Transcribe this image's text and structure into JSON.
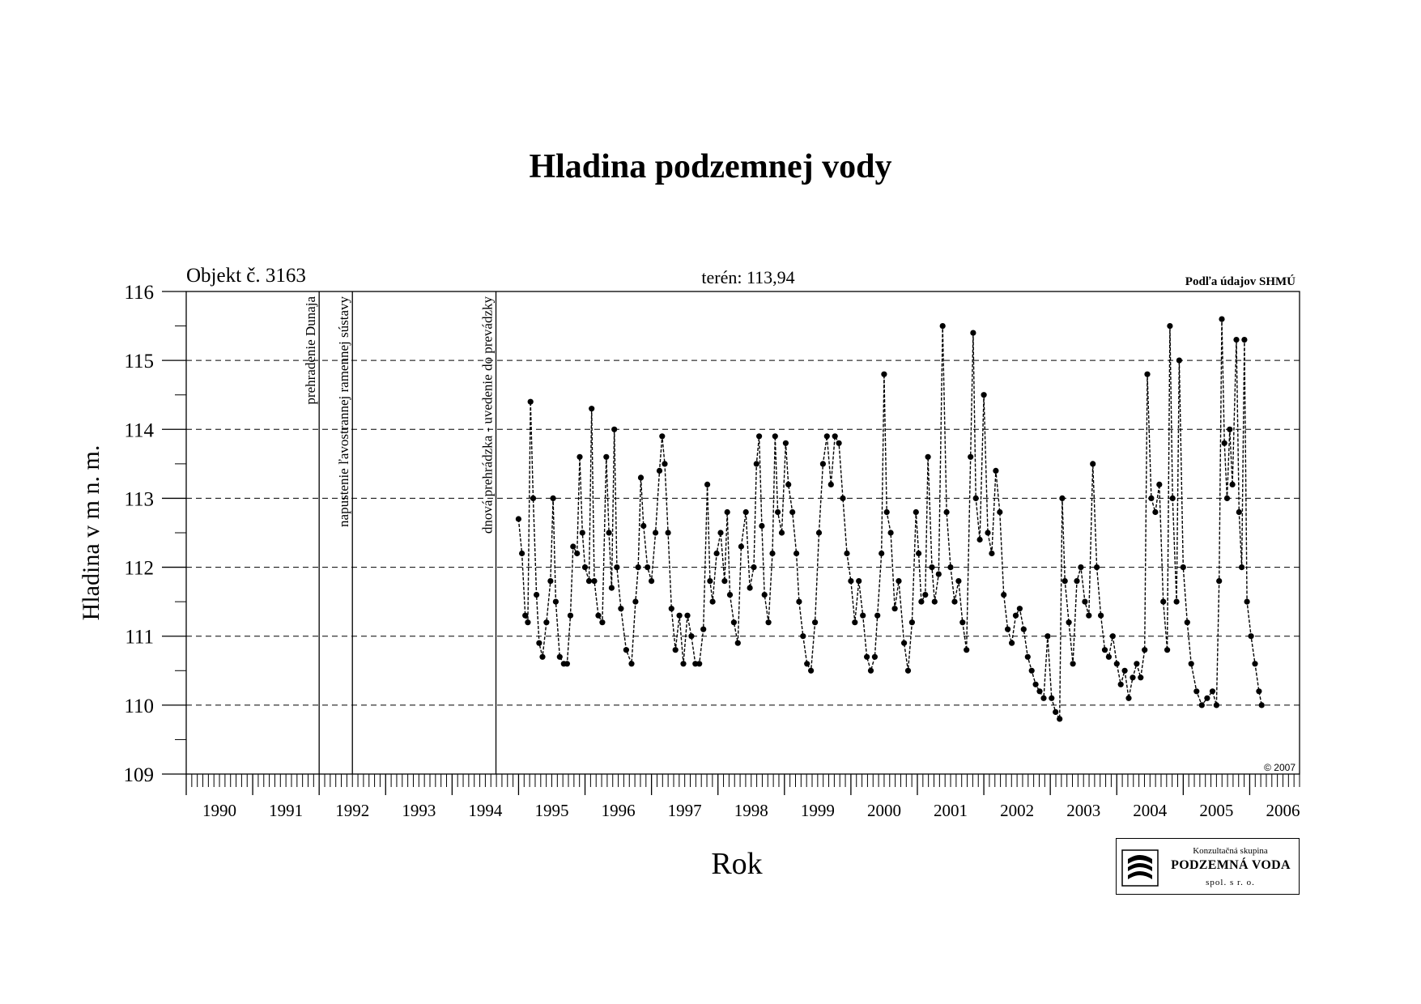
{
  "title": "Hladina podzemnej vody",
  "object_label": "Objekt č. 3163",
  "terrain_label": "terén: 113,94",
  "source_label": "Podľa údajov SHMÚ",
  "copyright": "© 2007",
  "logo": {
    "line1": "Konzultačná skupina",
    "line2": "PODZEMNÁ VODA",
    "line3": "spol. s r. o."
  },
  "chart_data": {
    "type": "line",
    "title": "Hladina podzemnej vody",
    "xlabel": "Rok",
    "ylabel": "Hladina v m n. m.",
    "xlim": [
      1990.0,
      2006.75
    ],
    "ylim": [
      109,
      116
    ],
    "yticks": [
      109,
      110,
      111,
      112,
      113,
      114,
      115,
      116
    ],
    "ytick_labels": [
      "109",
      "110",
      "111",
      "112",
      "113",
      "114",
      "115",
      "116"
    ],
    "xtick_labels": [
      "1990",
      "1991",
      "1992",
      "1993",
      "1994",
      "1995",
      "1996",
      "1997",
      "1998",
      "1999",
      "2000",
      "2001",
      "2002",
      "2003",
      "2004",
      "2005",
      "2006"
    ],
    "grid": "horizontal dashed",
    "events": [
      {
        "x": 1992.0,
        "label": "prehradenie Dunaja"
      },
      {
        "x": 1992.5,
        "label": "napustenie ľavostrannej ramennej sústavy"
      },
      {
        "x": 1994.66,
        "label": "dnová prehrádzka - uvedenie do prevádzky"
      }
    ],
    "series": [
      {
        "values": [
          [
            1995.0,
            112.7
          ],
          [
            1995.05,
            112.2
          ],
          [
            1995.1,
            111.3
          ],
          [
            1995.14,
            111.2
          ],
          [
            1995.18,
            114.4
          ],
          [
            1995.22,
            113.0
          ],
          [
            1995.27,
            111.6
          ],
          [
            1995.31,
            110.9
          ],
          [
            1995.36,
            110.7
          ],
          [
            1995.42,
            111.2
          ],
          [
            1995.48,
            111.8
          ],
          [
            1995.52,
            113.0
          ],
          [
            1995.56,
            111.5
          ],
          [
            1995.62,
            110.7
          ],
          [
            1995.68,
            110.6
          ],
          [
            1995.73,
            110.6
          ],
          [
            1995.78,
            111.3
          ],
          [
            1995.82,
            112.3
          ],
          [
            1995.88,
            112.2
          ],
          [
            1995.92,
            113.6
          ],
          [
            1995.96,
            112.5
          ],
          [
            1996.0,
            112.0
          ],
          [
            1996.06,
            111.8
          ],
          [
            1996.1,
            114.3
          ],
          [
            1996.14,
            111.8
          ],
          [
            1996.2,
            111.3
          ],
          [
            1996.26,
            111.2
          ],
          [
            1996.32,
            113.6
          ],
          [
            1996.36,
            112.5
          ],
          [
            1996.4,
            111.7
          ],
          [
            1996.44,
            114.0
          ],
          [
            1996.48,
            112.0
          ],
          [
            1996.54,
            111.4
          ],
          [
            1996.62,
            110.8
          ],
          [
            1996.7,
            110.6
          ],
          [
            1996.76,
            111.5
          ],
          [
            1996.8,
            112.0
          ],
          [
            1996.84,
            113.3
          ],
          [
            1996.88,
            112.6
          ],
          [
            1996.94,
            112.0
          ],
          [
            1997.0,
            111.8
          ],
          [
            1997.06,
            112.5
          ],
          [
            1997.12,
            113.4
          ],
          [
            1997.16,
            113.9
          ],
          [
            1997.2,
            113.5
          ],
          [
            1997.25,
            112.5
          ],
          [
            1997.3,
            111.4
          ],
          [
            1997.36,
            110.8
          ],
          [
            1997.42,
            111.3
          ],
          [
            1997.48,
            110.6
          ],
          [
            1997.54,
            111.3
          ],
          [
            1997.6,
            111.0
          ],
          [
            1997.66,
            110.6
          ],
          [
            1997.72,
            110.6
          ],
          [
            1997.78,
            111.1
          ],
          [
            1997.84,
            113.2
          ],
          [
            1997.88,
            111.8
          ],
          [
            1997.92,
            111.5
          ],
          [
            1997.98,
            112.2
          ],
          [
            1998.04,
            112.5
          ],
          [
            1998.1,
            111.8
          ],
          [
            1998.14,
            112.8
          ],
          [
            1998.18,
            111.6
          ],
          [
            1998.24,
            111.2
          ],
          [
            1998.3,
            110.9
          ],
          [
            1998.35,
            112.3
          ],
          [
            1998.42,
            112.8
          ],
          [
            1998.48,
            111.7
          ],
          [
            1998.54,
            112.0
          ],
          [
            1998.58,
            113.5
          ],
          [
            1998.62,
            113.9
          ],
          [
            1998.66,
            112.6
          ],
          [
            1998.7,
            111.6
          ],
          [
            1998.76,
            111.2
          ],
          [
            1998.82,
            112.2
          ],
          [
            1998.86,
            113.9
          ],
          [
            1998.9,
            112.8
          ],
          [
            1998.96,
            112.5
          ],
          [
            1999.02,
            113.8
          ],
          [
            1999.06,
            113.2
          ],
          [
            1999.12,
            112.8
          ],
          [
            1999.18,
            112.2
          ],
          [
            1999.22,
            111.5
          ],
          [
            1999.28,
            111.0
          ],
          [
            1999.34,
            110.6
          ],
          [
            1999.4,
            110.5
          ],
          [
            1999.46,
            111.2
          ],
          [
            1999.52,
            112.5
          ],
          [
            1999.58,
            113.5
          ],
          [
            1999.64,
            113.9
          ],
          [
            1999.7,
            113.2
          ],
          [
            1999.76,
            113.9
          ],
          [
            1999.82,
            113.8
          ],
          [
            1999.88,
            113.0
          ],
          [
            1999.94,
            112.2
          ],
          [
            2000.0,
            111.8
          ],
          [
            2000.06,
            111.2
          ],
          [
            2000.12,
            111.8
          ],
          [
            2000.18,
            111.3
          ],
          [
            2000.24,
            110.7
          ],
          [
            2000.3,
            110.5
          ],
          [
            2000.36,
            110.7
          ],
          [
            2000.4,
            111.3
          ],
          [
            2000.46,
            112.2
          ],
          [
            2000.5,
            114.8
          ],
          [
            2000.54,
            112.8
          ],
          [
            2000.6,
            112.5
          ],
          [
            2000.66,
            111.4
          ],
          [
            2000.72,
            111.8
          ],
          [
            2000.8,
            110.9
          ],
          [
            2000.86,
            110.5
          ],
          [
            2000.92,
            111.2
          ],
          [
            2000.98,
            112.8
          ],
          [
            2001.02,
            112.2
          ],
          [
            2001.06,
            111.5
          ],
          [
            2001.12,
            111.6
          ],
          [
            2001.16,
            113.6
          ],
          [
            2001.22,
            112.0
          ],
          [
            2001.26,
            111.5
          ],
          [
            2001.32,
            111.9
          ],
          [
            2001.38,
            115.5
          ],
          [
            2001.44,
            112.8
          ],
          [
            2001.5,
            112.0
          ],
          [
            2001.56,
            111.5
          ],
          [
            2001.62,
            111.8
          ],
          [
            2001.68,
            111.2
          ],
          [
            2001.74,
            110.8
          ],
          [
            2001.8,
            113.6
          ],
          [
            2001.84,
            115.4
          ],
          [
            2001.88,
            113.0
          ],
          [
            2001.94,
            112.4
          ],
          [
            2002.0,
            114.5
          ],
          [
            2002.06,
            112.5
          ],
          [
            2002.12,
            112.2
          ],
          [
            2002.18,
            113.4
          ],
          [
            2002.24,
            112.8
          ],
          [
            2002.3,
            111.6
          ],
          [
            2002.36,
            111.1
          ],
          [
            2002.42,
            110.9
          ],
          [
            2002.48,
            111.3
          ],
          [
            2002.54,
            111.4
          ],
          [
            2002.6,
            111.1
          ],
          [
            2002.66,
            110.7
          ],
          [
            2002.72,
            110.5
          ],
          [
            2002.78,
            110.3
          ],
          [
            2002.84,
            110.2
          ],
          [
            2002.9,
            110.1
          ],
          [
            2002.96,
            111.0
          ],
          [
            2003.02,
            110.1
          ],
          [
            2003.08,
            109.9
          ],
          [
            2003.14,
            109.8
          ],
          [
            2003.18,
            113.0
          ],
          [
            2003.22,
            111.8
          ],
          [
            2003.28,
            111.2
          ],
          [
            2003.34,
            110.6
          ],
          [
            2003.4,
            111.8
          ],
          [
            2003.46,
            112.0
          ],
          [
            2003.52,
            111.5
          ],
          [
            2003.58,
            111.3
          ],
          [
            2003.64,
            113.5
          ],
          [
            2003.7,
            112.0
          ],
          [
            2003.76,
            111.3
          ],
          [
            2003.82,
            110.8
          ],
          [
            2003.88,
            110.7
          ],
          [
            2003.94,
            111.0
          ],
          [
            2004.0,
            110.6
          ],
          [
            2004.06,
            110.3
          ],
          [
            2004.12,
            110.5
          ],
          [
            2004.18,
            110.1
          ],
          [
            2004.24,
            110.4
          ],
          [
            2004.3,
            110.6
          ],
          [
            2004.36,
            110.4
          ],
          [
            2004.42,
            110.8
          ],
          [
            2004.46,
            114.8
          ],
          [
            2004.52,
            113.0
          ],
          [
            2004.58,
            112.8
          ],
          [
            2004.64,
            113.2
          ],
          [
            2004.7,
            111.5
          ],
          [
            2004.76,
            110.8
          ],
          [
            2004.8,
            115.5
          ],
          [
            2004.84,
            113.0
          ],
          [
            2004.9,
            111.5
          ],
          [
            2004.94,
            115.0
          ],
          [
            2005.0,
            112.0
          ],
          [
            2005.06,
            111.2
          ],
          [
            2005.12,
            110.6
          ],
          [
            2005.2,
            110.2
          ],
          [
            2005.28,
            110.0
          ],
          [
            2005.36,
            110.1
          ],
          [
            2005.44,
            110.2
          ],
          [
            2005.5,
            110.0
          ],
          [
            2005.54,
            111.8
          ],
          [
            2005.58,
            115.6
          ],
          [
            2005.62,
            113.8
          ],
          [
            2005.66,
            113.0
          ],
          [
            2005.7,
            114.0
          ],
          [
            2005.74,
            113.2
          ],
          [
            2005.8,
            115.3
          ],
          [
            2005.84,
            112.8
          ],
          [
            2005.88,
            112.0
          ],
          [
            2005.92,
            115.3
          ],
          [
            2005.96,
            111.5
          ],
          [
            2006.02,
            111.0
          ],
          [
            2006.08,
            110.6
          ],
          [
            2006.14,
            110.2
          ],
          [
            2006.18,
            110.0
          ]
        ]
      }
    ]
  }
}
